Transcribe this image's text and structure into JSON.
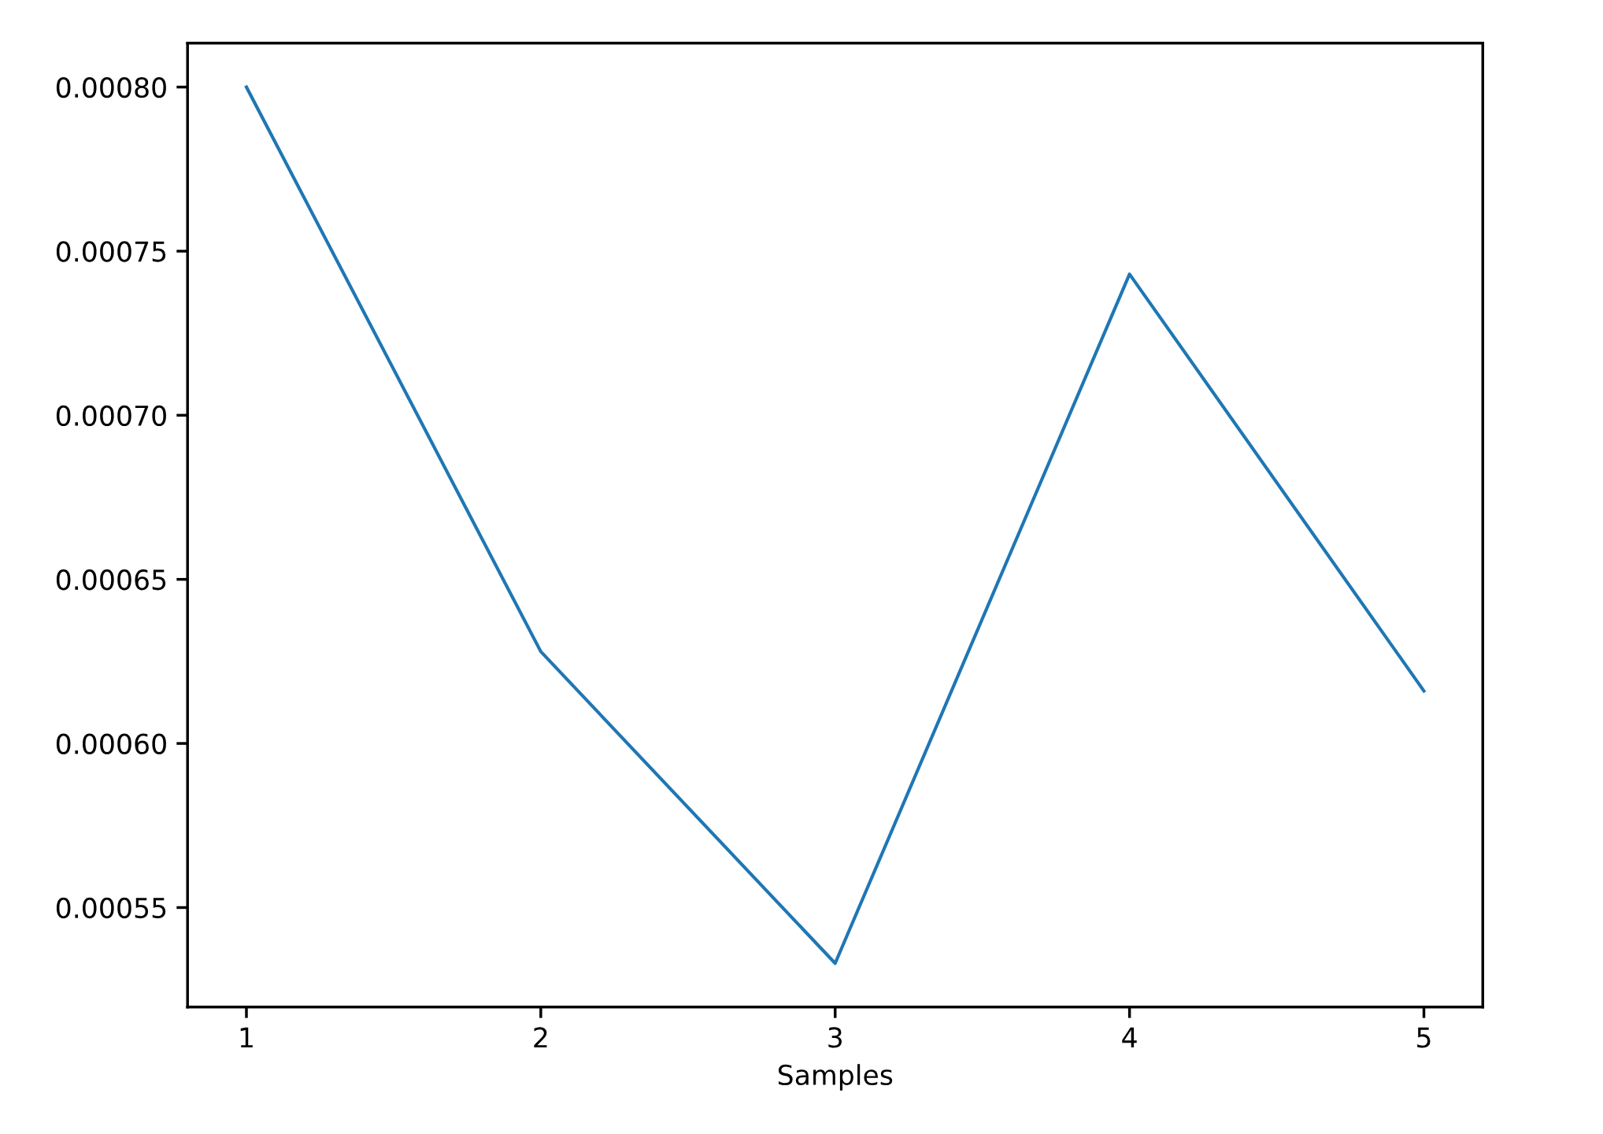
{
  "chart_data": {
    "type": "line",
    "xlabel": "Samples",
    "x": [
      1,
      2,
      3,
      4,
      5
    ],
    "series": [
      {
        "color": "#1f77b4",
        "values": [
          0.0008,
          0.000628,
          0.000533,
          0.000743,
          0.000616
        ]
      }
    ],
    "xlim": [
      0.8,
      5.2
    ],
    "ylim": [
      0.0005197,
      0.0008134
    ],
    "xticks": [
      1,
      2,
      3,
      4,
      5
    ],
    "yticks": [
      {
        "value": 0.00055,
        "label": "0.00055"
      },
      {
        "value": 0.0006,
        "label": "0.00060"
      },
      {
        "value": 0.00065,
        "label": "0.00065"
      },
      {
        "value": 0.0007,
        "label": "0.00070"
      },
      {
        "value": 0.00075,
        "label": "0.00075"
      },
      {
        "value": 0.0008,
        "label": "0.00080"
      }
    ],
    "grid": false,
    "legend": false
  }
}
